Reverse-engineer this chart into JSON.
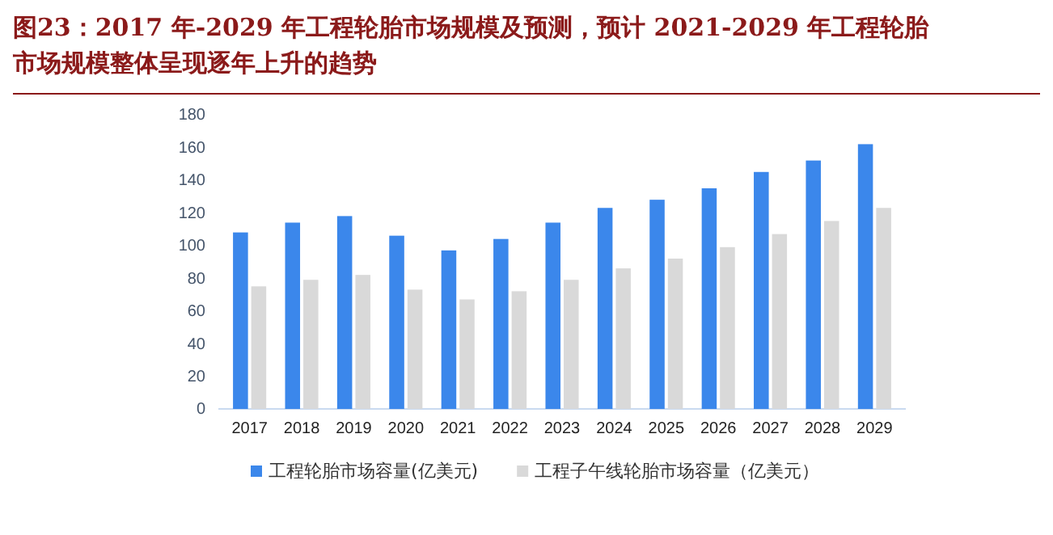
{
  "chart_data": {
    "type": "bar",
    "title": "图23：2017 年-2029 年工程轮胎市场规模及预测，预计 2021-2029 年工程轮胎市场规模整体呈现逐年上升的趋势",
    "categories": [
      "2017",
      "2018",
      "2019",
      "2020",
      "2021",
      "2022",
      "2023",
      "2024",
      "2025",
      "2026",
      "2027",
      "2028",
      "2029"
    ],
    "series": [
      {
        "name": "工程轮胎市场容量(亿美元)",
        "color": "#3b87eb",
        "values": [
          108,
          114,
          118,
          106,
          97,
          104,
          114,
          123,
          128,
          135,
          145,
          152,
          162
        ]
      },
      {
        "name": "工程子午线轮胎市场容量（亿美元）",
        "color": "#d9d9d9",
        "values": [
          75,
          79,
          82,
          73,
          67,
          72,
          79,
          86,
          92,
          99,
          107,
          115,
          123
        ]
      }
    ],
    "ylim": [
      0,
      180
    ],
    "yticks": [
      0,
      20,
      40,
      60,
      80,
      100,
      120,
      140,
      160,
      180
    ],
    "grid": false,
    "legend": "bottom"
  }
}
